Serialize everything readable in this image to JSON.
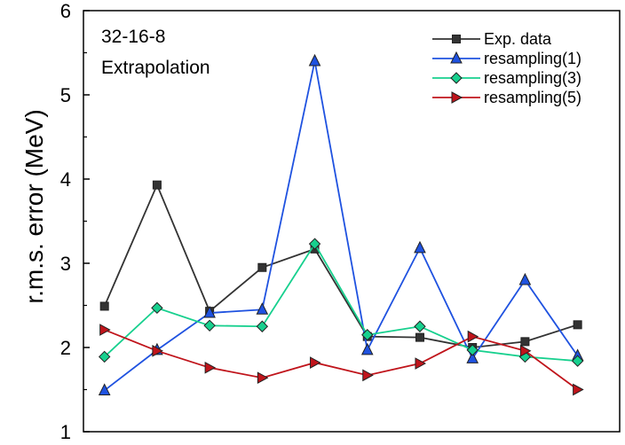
{
  "chart_data": {
    "type": "line",
    "ylabel": "r.m.s. error (MeV)",
    "xlabel": "",
    "ylim": [
      1,
      6
    ],
    "yticks": [
      1,
      2,
      3,
      4,
      5,
      6
    ],
    "x": [
      1,
      2,
      3,
      4,
      5,
      6,
      7,
      8,
      9,
      10
    ],
    "xlim": [
      0.6,
      10.8
    ],
    "annotations": [
      "32-16-8",
      "Extrapolation"
    ],
    "legend_position": "top-right",
    "grid": false,
    "series": [
      {
        "name": "Exp. data",
        "color": "#333333",
        "marker": "square",
        "values": [
          2.49,
          3.93,
          2.43,
          2.95,
          3.17,
          2.13,
          2.12,
          2.0,
          2.07,
          2.27
        ]
      },
      {
        "name": "resampling(1)",
        "color": "#1f52e0",
        "marker": "triangle-up",
        "values": [
          1.49,
          1.97,
          2.41,
          2.45,
          5.4,
          1.97,
          3.18,
          1.87,
          2.8,
          1.9
        ]
      },
      {
        "name": "resampling(3)",
        "color": "#17d08e",
        "marker": "diamond",
        "values": [
          1.89,
          2.47,
          2.26,
          2.25,
          3.23,
          2.15,
          2.25,
          1.97,
          1.89,
          1.84
        ]
      },
      {
        "name": "resampling(5)",
        "color": "#c0141b",
        "marker": "triangle-right",
        "values": [
          2.21,
          1.96,
          1.76,
          1.64,
          1.82,
          1.67,
          1.81,
          2.13,
          1.96,
          1.5
        ]
      }
    ]
  }
}
